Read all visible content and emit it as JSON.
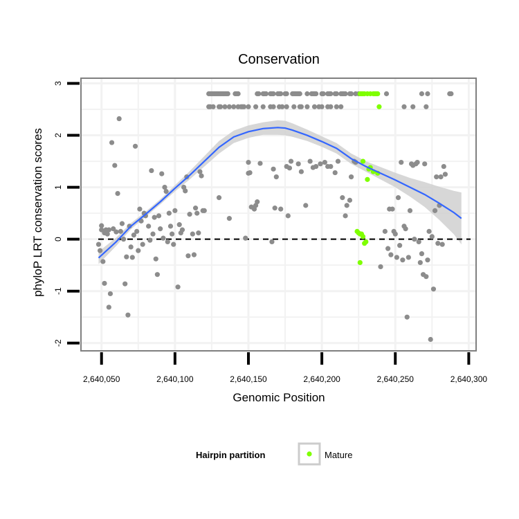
{
  "chart_data": {
    "type": "scatter",
    "title": "Conservation",
    "xlabel": "Genomic Position",
    "ylabel": "phyloP LRT conservation scores",
    "xlim": [
      2640036,
      2640305
    ],
    "ylim": [
      -2.15,
      3.1
    ],
    "x_ticks": [
      2640050,
      2640100,
      2640150,
      2640200,
      2640250,
      2640300
    ],
    "x_tick_labels": [
      "2,640,050",
      "2,640,100",
      "2,640,150",
      "2,640,200",
      "2,640,250",
      "2,640,300"
    ],
    "y_ticks": [
      -2,
      -1,
      0,
      1,
      2,
      3
    ],
    "y_tick_labels": [
      "-2",
      "-1",
      "0",
      "1",
      "2",
      "3"
    ],
    "grid": true,
    "reference_line": {
      "y": 0,
      "style": "dashed",
      "color": "#000000"
    },
    "legend": {
      "title": "Hairpin partition",
      "placement": "bottom",
      "entries": [
        {
          "label": "Mature",
          "color": "#7fff00"
        }
      ]
    },
    "colors": {
      "other": "#8c8c8c",
      "mature": "#7fff00",
      "smooth": "#3366ff",
      "band": "#d0d0d0"
    },
    "series": [
      {
        "key": "other",
        "points": [
          [
            2640048,
            -0.1
          ],
          [
            2640049,
            -0.22
          ],
          [
            2640050,
            0.26
          ],
          [
            2640050,
            0.18
          ],
          [
            2640051,
            -0.43
          ],
          [
            2640052,
            0.12
          ],
          [
            2640052,
            -0.85
          ],
          [
            2640053,
            0.18
          ],
          [
            2640054,
            0.1
          ],
          [
            2640055,
            -1.31
          ],
          [
            2640055,
            0.18
          ],
          [
            2640056,
            -1.05
          ],
          [
            2640057,
            1.86
          ],
          [
            2640058,
            0.2
          ],
          [
            2640059,
            1.42
          ],
          [
            2640060,
            0.14
          ],
          [
            2640061,
            0.88
          ],
          [
            2640062,
            2.32
          ],
          [
            2640063,
            0.15
          ],
          [
            2640064,
            0.3
          ],
          [
            2640065,
            0.0
          ],
          [
            2640066,
            -0.86
          ],
          [
            2640067,
            -0.34
          ],
          [
            2640068,
            -1.46
          ],
          [
            2640069,
            0.25
          ],
          [
            2640070,
            -0.15
          ],
          [
            2640071,
            -0.35
          ],
          [
            2640072,
            0.08
          ],
          [
            2640073,
            1.79
          ],
          [
            2640074,
            0.15
          ],
          [
            2640075,
            -0.22
          ],
          [
            2640076,
            0.58
          ],
          [
            2640077,
            0.35
          ],
          [
            2640078,
            -0.1
          ],
          [
            2640079,
            0.5
          ],
          [
            2640080,
            0.45
          ],
          [
            2640082,
            0.25
          ],
          [
            2640083,
            -0.02
          ],
          [
            2640084,
            1.32
          ],
          [
            2640085,
            0.1
          ],
          [
            2640086,
            0.42
          ],
          [
            2640087,
            -0.38
          ],
          [
            2640088,
            -0.68
          ],
          [
            2640089,
            0.45
          ],
          [
            2640090,
            0.2
          ],
          [
            2640091,
            1.26
          ],
          [
            2640092,
            0.02
          ],
          [
            2640093,
            1.0
          ],
          [
            2640094,
            0.92
          ],
          [
            2640095,
            -0.05
          ],
          [
            2640096,
            0.5
          ],
          [
            2640097,
            0.25
          ],
          [
            2640098,
            0.1
          ],
          [
            2640099,
            -0.1
          ],
          [
            2640100,
            0.55
          ],
          [
            2640102,
            -0.92
          ],
          [
            2640103,
            0.28
          ],
          [
            2640104,
            0.12
          ],
          [
            2640105,
            0.18
          ],
          [
            2640106,
            1.0
          ],
          [
            2640107,
            0.93
          ],
          [
            2640108,
            1.2
          ],
          [
            2640109,
            -0.32
          ],
          [
            2640110,
            0.48
          ],
          [
            2640112,
            0.1
          ],
          [
            2640113,
            -0.3
          ],
          [
            2640114,
            0.6
          ],
          [
            2640115,
            0.5
          ],
          [
            2640116,
            0.12
          ],
          [
            2640117,
            1.3
          ],
          [
            2640118,
            1.22
          ],
          [
            2640119,
            0.55
          ],
          [
            2640120,
            0.55
          ],
          [
            2640123,
            2.8
          ],
          [
            2640124,
            2.8
          ],
          [
            2640125,
            2.8
          ],
          [
            2640126,
            2.8
          ],
          [
            2640127,
            2.8
          ],
          [
            2640128,
            2.8
          ],
          [
            2640129,
            2.8
          ],
          [
            2640130,
            2.8
          ],
          [
            2640131,
            2.8
          ],
          [
            2640132,
            2.8
          ],
          [
            2640133,
            2.8
          ],
          [
            2640134,
            2.8
          ],
          [
            2640135,
            2.8
          ],
          [
            2640136,
            2.8
          ],
          [
            2640141,
            2.8
          ],
          [
            2640142,
            2.8
          ],
          [
            2640143,
            2.8
          ],
          [
            2640156,
            2.8
          ],
          [
            2640157,
            2.8
          ],
          [
            2640160,
            2.8
          ],
          [
            2640161,
            2.8
          ],
          [
            2640162,
            2.8
          ],
          [
            2640165,
            2.8
          ],
          [
            2640166,
            2.8
          ],
          [
            2640167,
            2.8
          ],
          [
            2640170,
            2.8
          ],
          [
            2640171,
            2.8
          ],
          [
            2640172,
            2.8
          ],
          [
            2640175,
            2.8
          ],
          [
            2640176,
            2.8
          ],
          [
            2640180,
            2.8
          ],
          [
            2640181,
            2.8
          ],
          [
            2640182,
            2.8
          ],
          [
            2640183,
            2.8
          ],
          [
            2640184,
            2.8
          ],
          [
            2640185,
            2.8
          ],
          [
            2640190,
            2.8
          ],
          [
            2640193,
            2.8
          ],
          [
            2640194,
            2.8
          ],
          [
            2640195,
            2.8
          ],
          [
            2640196,
            2.8
          ],
          [
            2640200,
            2.8
          ],
          [
            2640201,
            2.8
          ],
          [
            2640204,
            2.8
          ],
          [
            2640205,
            2.8
          ],
          [
            2640206,
            2.8
          ],
          [
            2640209,
            2.8
          ],
          [
            2640210,
            2.8
          ],
          [
            2640213,
            2.8
          ],
          [
            2640214,
            2.8
          ],
          [
            2640215,
            2.8
          ],
          [
            2640216,
            2.8
          ],
          [
            2640219,
            2.8
          ],
          [
            2640220,
            2.8
          ],
          [
            2640223,
            2.8
          ],
          [
            2640225,
            2.8
          ],
          [
            2640244,
            2.8
          ],
          [
            2640268,
            2.8
          ],
          [
            2640272,
            2.8
          ],
          [
            2640287,
            2.8
          ],
          [
            2640288,
            2.8
          ],
          [
            2640123,
            2.55
          ],
          [
            2640124,
            2.55
          ],
          [
            2640126,
            2.55
          ],
          [
            2640130,
            2.55
          ],
          [
            2640131,
            2.55
          ],
          [
            2640134,
            2.55
          ],
          [
            2640137,
            2.55
          ],
          [
            2640140,
            2.55
          ],
          [
            2640143,
            2.55
          ],
          [
            2640145,
            2.55
          ],
          [
            2640146,
            2.55
          ],
          [
            2640147,
            2.55
          ],
          [
            2640150,
            2.55
          ],
          [
            2640155,
            2.55
          ],
          [
            2640160,
            2.55
          ],
          [
            2640165,
            2.55
          ],
          [
            2640167,
            2.55
          ],
          [
            2640171,
            2.55
          ],
          [
            2640173,
            2.55
          ],
          [
            2640176,
            2.55
          ],
          [
            2640181,
            2.55
          ],
          [
            2640185,
            2.55
          ],
          [
            2640186,
            2.55
          ],
          [
            2640190,
            2.55
          ],
          [
            2640195,
            2.55
          ],
          [
            2640198,
            2.55
          ],
          [
            2640200,
            2.55
          ],
          [
            2640204,
            2.55
          ],
          [
            2640206,
            2.55
          ],
          [
            2640210,
            2.55
          ],
          [
            2640213,
            2.55
          ],
          [
            2640256,
            2.55
          ],
          [
            2640262,
            2.55
          ],
          [
            2640271,
            2.55
          ],
          [
            2640130,
            0.8
          ],
          [
            2640137,
            0.4
          ],
          [
            2640148,
            0.02
          ],
          [
            2640150,
            1.27
          ],
          [
            2640150,
            1.48
          ],
          [
            2640151,
            1.28
          ],
          [
            2640152,
            0.62
          ],
          [
            2640154,
            0.58
          ],
          [
            2640155,
            0.65
          ],
          [
            2640156,
            0.72
          ],
          [
            2640158,
            1.46
          ],
          [
            2640166,
            -0.05
          ],
          [
            2640167,
            1.35
          ],
          [
            2640168,
            0.6
          ],
          [
            2640169,
            1.2
          ],
          [
            2640172,
            0.58
          ],
          [
            2640176,
            1.4
          ],
          [
            2640177,
            0.45
          ],
          [
            2640178,
            1.37
          ],
          [
            2640179,
            1.5
          ],
          [
            2640184,
            1.45
          ],
          [
            2640186,
            1.3
          ],
          [
            2640189,
            0.65
          ],
          [
            2640192,
            1.5
          ],
          [
            2640194,
            1.38
          ],
          [
            2640196,
            1.4
          ],
          [
            2640199,
            1.45
          ],
          [
            2640202,
            1.48
          ],
          [
            2640204,
            1.4
          ],
          [
            2640206,
            1.4
          ],
          [
            2640209,
            1.28
          ],
          [
            2640211,
            1.5
          ],
          [
            2640214,
            0.8
          ],
          [
            2640216,
            0.45
          ],
          [
            2640217,
            0.65
          ],
          [
            2640219,
            0.75
          ],
          [
            2640220,
            1.2
          ],
          [
            2640222,
            1.5
          ],
          [
            2640223,
            1.48
          ],
          [
            2640240,
            -0.53
          ],
          [
            2640243,
            0.15
          ],
          [
            2640245,
            -0.18
          ],
          [
            2640246,
            0.58
          ],
          [
            2640247,
            -0.3
          ],
          [
            2640248,
            0.58
          ],
          [
            2640249,
            0.15
          ],
          [
            2640250,
            0.1
          ],
          [
            2640251,
            -0.35
          ],
          [
            2640252,
            0.8
          ],
          [
            2640253,
            -0.12
          ],
          [
            2640254,
            1.48
          ],
          [
            2640255,
            -0.4
          ],
          [
            2640256,
            0.25
          ],
          [
            2640257,
            0.2
          ],
          [
            2640258,
            -1.5
          ],
          [
            2640259,
            -0.35
          ],
          [
            2640260,
            0.55
          ],
          [
            2640261,
            1.45
          ],
          [
            2640262,
            1.42
          ],
          [
            2640263,
            0.0
          ],
          [
            2640264,
            1.45
          ],
          [
            2640265,
            1.48
          ],
          [
            2640266,
            -0.05
          ],
          [
            2640267,
            -0.45
          ],
          [
            2640268,
            -0.28
          ],
          [
            2640269,
            -0.68
          ],
          [
            2640270,
            1.45
          ],
          [
            2640271,
            -0.72
          ],
          [
            2640272,
            -0.4
          ],
          [
            2640273,
            0.15
          ],
          [
            2640274,
            -1.93
          ],
          [
            2640275,
            0.05
          ],
          [
            2640276,
            -0.96
          ],
          [
            2640277,
            0.55
          ],
          [
            2640278,
            1.2
          ],
          [
            2640279,
            -0.08
          ],
          [
            2640280,
            0.65
          ],
          [
            2640281,
            1.2
          ],
          [
            2640282,
            -0.1
          ],
          [
            2640283,
            1.4
          ],
          [
            2640284,
            1.25
          ]
        ]
      },
      {
        "key": "mature",
        "points": [
          [
            2640226,
            2.8
          ],
          [
            2640227,
            2.8
          ],
          [
            2640228,
            2.8
          ],
          [
            2640229,
            2.8
          ],
          [
            2640231,
            2.8
          ],
          [
            2640233,
            2.8
          ],
          [
            2640235,
            2.8
          ],
          [
            2640236,
            2.8
          ],
          [
            2640237,
            2.8
          ],
          [
            2640238,
            2.8
          ],
          [
            2640239,
            2.55
          ],
          [
            2640228,
            1.5
          ],
          [
            2640232,
            1.35
          ],
          [
            2640233,
            1.38
          ],
          [
            2640235,
            1.3
          ],
          [
            2640238,
            1.27
          ],
          [
            2640231,
            1.15
          ],
          [
            2640224,
            0.15
          ],
          [
            2640225,
            0.12
          ],
          [
            2640226,
            0.1
          ],
          [
            2640227,
            0.1
          ],
          [
            2640228,
            0.05
          ],
          [
            2640229,
            -0.08
          ],
          [
            2640230,
            -0.05
          ],
          [
            2640226,
            -0.45
          ]
        ]
      }
    ],
    "smooth": {
      "method": "loess",
      "x": [
        2640048,
        2640060,
        2640070,
        2640080,
        2640090,
        2640100,
        2640110,
        2640120,
        2640130,
        2640140,
        2640150,
        2640160,
        2640170,
        2640175,
        2640180,
        2640190,
        2640200,
        2640210,
        2640220,
        2640230,
        2640240,
        2640250,
        2640260,
        2640270,
        2640280,
        2640290,
        2640295
      ],
      "y": [
        -0.36,
        -0.05,
        0.25,
        0.48,
        0.72,
        0.98,
        1.23,
        1.5,
        1.77,
        1.97,
        2.07,
        2.13,
        2.15,
        2.14,
        2.1,
        2.0,
        1.88,
        1.75,
        1.55,
        1.4,
        1.27,
        1.14,
        1.0,
        0.86,
        0.69,
        0.51,
        0.4
      ],
      "band": [
        0.12,
        0.08,
        0.06,
        0.05,
        0.05,
        0.06,
        0.08,
        0.1,
        0.12,
        0.12,
        0.12,
        0.12,
        0.14,
        0.14,
        0.13,
        0.11,
        0.1,
        0.1,
        0.1,
        0.1,
        0.12,
        0.14,
        0.18,
        0.24,
        0.32,
        0.42,
        0.5
      ]
    }
  }
}
